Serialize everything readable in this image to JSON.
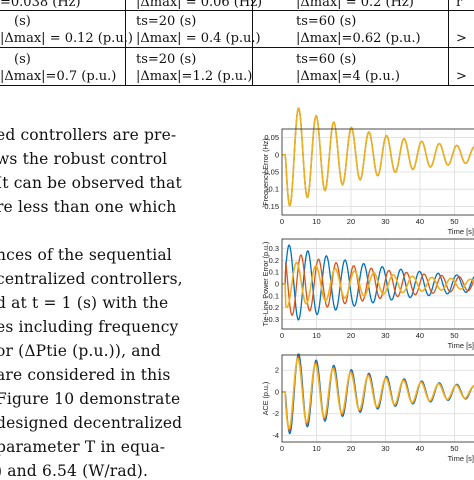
{
  "table": {
    "rows": [
      [
        "(s)",
        "|Δmax| = 0.06 (Hz)",
        "|Δmax| = 0.2 (Hz)",
        ""
      ],
      [
        "(s)",
        "ts=20  (s)",
        "ts=60  (s)",
        ""
      ],
      [
        "|Δmax| = 0.12  (p.u.)",
        "|Δmax| = 0.4  (p.u.)",
        "|Δmax|=0.62  (p.u.)",
        ""
      ],
      [
        "(s)",
        "ts=20  (s)",
        "ts=60  (s)",
        ""
      ],
      [
        "|Δmax|=0.7  (p.u.)",
        "|Δmax|=1.2  (p.u.)",
        "|Δmax|=4  (p.u.)",
        ""
      ]
    ],
    "clipped_first": "=0.038 (Hz)"
  },
  "paragraph": {
    "lines": [
      "ed controllers are pre-",
      "ws the robust control",
      "It can be observed that",
      "re less than one which",
      "",
      "nces of the sequential",
      "centralized controllers,",
      "d at t = 1 (s) with the",
      "es including frequency",
      "or (ΔPtie  (p.u.)), and",
      "are considered in this",
      "Figure 10 demonstrate",
      "designed decentralized",
      "parameter T in equa-",
      ") and 6.54  (W/rad)."
    ]
  },
  "figure": {
    "xlabel": "Time [s]",
    "panels": [
      {
        "ylabel": "Frequency Error (Hz)",
        "xticks": [
          "0",
          "10",
          "20",
          "30",
          "40",
          "50"
        ],
        "yticks": [
          "0.05",
          "0",
          "-0.05",
          "-0.1",
          "-0.15"
        ],
        "chart_data": {
          "type": "line",
          "xlim": [
            0,
            58
          ],
          "ylim": [
            -0.175,
            0.075
          ],
          "series": [
            {
              "color": "#0072BD",
              "amp": -0.155,
              "decay": 0.035,
              "period": 5.1,
              "phase": 0
            },
            {
              "color": "#D95319",
              "amp": -0.155,
              "decay": 0.035,
              "period": 5.1,
              "phase": 0
            },
            {
              "color": "#EDB120",
              "amp": -0.155,
              "decay": 0.035,
              "period": 5.1,
              "phase": 0
            }
          ]
        }
      },
      {
        "ylabel": "Tie-Line Power Error (p.u.)",
        "xticks": [
          "0",
          "10",
          "20",
          "30",
          "40",
          "50"
        ],
        "yticks": [
          "0.3",
          "0.2",
          "0.1",
          "0",
          "-0.1",
          "-0.2",
          "-0.3"
        ],
        "chart_data": {
          "type": "line",
          "xlim": [
            0,
            58
          ],
          "ylim": [
            -0.38,
            0.38
          ],
          "series": [
            {
              "color": "#0072BD",
              "amp": 0.34,
              "decay": 0.03,
              "period": 5.4,
              "phase": 0.3
            },
            {
              "color": "#D95319",
              "amp": 0.28,
              "decay": 0.03,
              "period": 5.1,
              "phase": 2.3
            },
            {
              "color": "#EDB120",
              "amp": 0.2,
              "decay": 0.03,
              "period": 5.6,
              "phase": 4.2
            }
          ]
        }
      },
      {
        "ylabel": "ACE (p.u.)",
        "xticks": [
          "0",
          "10",
          "20",
          "30",
          "40",
          "50"
        ],
        "yticks": [
          "2",
          "0",
          "-2",
          "-4"
        ],
        "chart_data": {
          "type": "line",
          "xlim": [
            0,
            58
          ],
          "ylim": [
            -4.6,
            3.4
          ],
          "series": [
            {
              "color": "#0072BD",
              "amp": -4.0,
              "decay": 0.035,
              "period": 5.1,
              "phase": 0
            },
            {
              "color": "#D95319",
              "amp": -3.7,
              "decay": 0.035,
              "period": 5.1,
              "phase": 0.15
            },
            {
              "color": "#EDB120",
              "amp": -3.5,
              "decay": 0.035,
              "period": 5.1,
              "phase": 0.25
            }
          ]
        }
      }
    ]
  }
}
